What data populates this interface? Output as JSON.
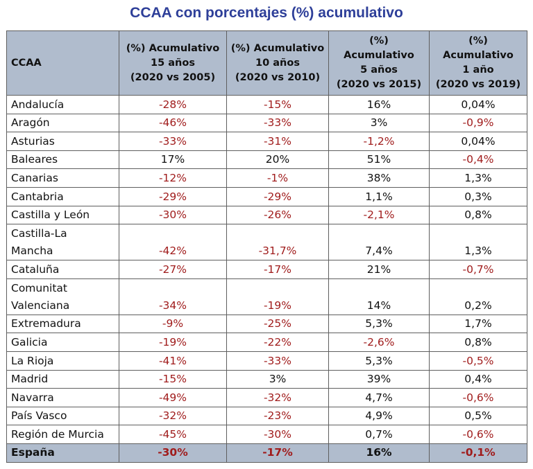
{
  "title": "CCAA con porcentajes (%) acumulativo",
  "colors": {
    "title": "#2e3f99",
    "header_bg": "#b0bccd",
    "negative": "#a01c1c",
    "text": "#111111",
    "border": "#5e5e5e"
  },
  "table": {
    "headers": [
      {
        "lines": [
          "CCAA"
        ]
      },
      {
        "lines": [
          "(%) Acumulativo",
          "15 años",
          "(2020 vs 2005)"
        ]
      },
      {
        "lines": [
          "(%) Acumulativo",
          "10 años",
          "(2020 vs 2010)"
        ]
      },
      {
        "lines": [
          "(%)",
          "Acumulativo",
          "5 años",
          "(2020 vs 2015)"
        ]
      },
      {
        "lines": [
          "(%)",
          "Acumulativo",
          "1 año",
          "(2020 vs 2019)"
        ]
      }
    ],
    "rows": [
      {
        "name": [
          "Andalucía"
        ],
        "values": [
          "-28%",
          "-15%",
          "16%",
          "0,04%"
        ]
      },
      {
        "name": [
          "Aragón"
        ],
        "values": [
          "-46%",
          "-33%",
          "3%",
          "-0,9%"
        ]
      },
      {
        "name": [
          "Asturias"
        ],
        "values": [
          "-33%",
          "-31%",
          "-1,2%",
          "0,04%"
        ]
      },
      {
        "name": [
          "Baleares"
        ],
        "values": [
          "17%",
          "20%",
          "51%",
          "-0,4%"
        ]
      },
      {
        "name": [
          "Canarias"
        ],
        "values": [
          "-12%",
          "-1%",
          "38%",
          "1,3%"
        ]
      },
      {
        "name": [
          "Cantabria"
        ],
        "values": [
          "-29%",
          "-29%",
          "1,1%",
          "0,3%"
        ]
      },
      {
        "name": [
          "Castilla y León"
        ],
        "values": [
          "-30%",
          "-26%",
          "-2,1%",
          "0,8%"
        ]
      },
      {
        "name": [
          "Castilla-La",
          "Mancha"
        ],
        "values": [
          "-42%",
          "-31,7%",
          "7,4%",
          "1,3%"
        ]
      },
      {
        "name": [
          "Cataluña"
        ],
        "values": [
          "-27%",
          "-17%",
          "21%",
          "-0,7%"
        ]
      },
      {
        "name": [
          "Comunitat",
          "Valenciana"
        ],
        "values": [
          "-34%",
          "-19%",
          "14%",
          "0,2%"
        ]
      },
      {
        "name": [
          "Extremadura"
        ],
        "values": [
          "-9%",
          "-25%",
          "5,3%",
          "1,7%"
        ]
      },
      {
        "name": [
          "Galicia"
        ],
        "values": [
          "-19%",
          "-22%",
          "-2,6%",
          "0,8%"
        ]
      },
      {
        "name": [
          "La Rioja"
        ],
        "values": [
          "-41%",
          "-33%",
          "5,3%",
          "-0,5%"
        ]
      },
      {
        "name": [
          "Madrid"
        ],
        "values": [
          "-15%",
          "3%",
          "39%",
          "0,4%"
        ]
      },
      {
        "name": [
          "Navarra"
        ],
        "values": [
          "-49%",
          "-32%",
          "4,7%",
          "-0,6%"
        ]
      },
      {
        "name": [
          "País Vasco"
        ],
        "values": [
          "-32%",
          "-23%",
          "4,9%",
          "0,5%"
        ]
      },
      {
        "name": [
          "Región de Murcia"
        ],
        "values": [
          "-45%",
          "-30%",
          "0,7%",
          "-0,6%"
        ]
      }
    ],
    "total": {
      "name": "España",
      "values": [
        "-30%",
        "-17%",
        "16%",
        "-0,1%"
      ]
    }
  }
}
